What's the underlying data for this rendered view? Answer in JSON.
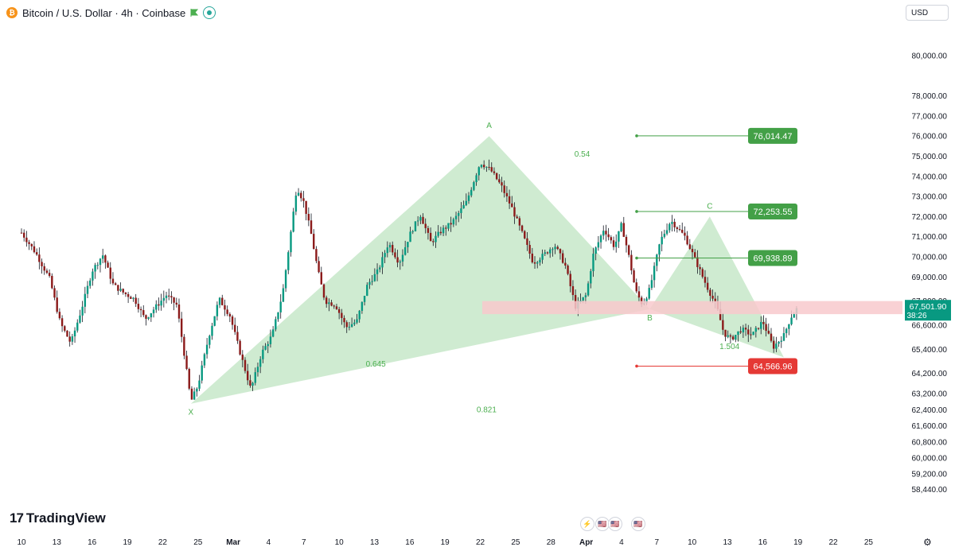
{
  "header": {
    "coin_icon": "bitcoin-icon",
    "symbol_title": "Bitcoin / U.S. Dollar · 4h · Coinbase",
    "flag_icon": "green-flag-icon",
    "status_icon": "market-open-dot-icon"
  },
  "currency": "USD",
  "logo": {
    "mark": "17",
    "text": "TradingView"
  },
  "settings_icon": "gear-icon",
  "colors": {
    "up": "#089981",
    "down": "#8b1a1a",
    "pattern_fill": "#c7e8c9",
    "pattern_text": "#4caf50",
    "target_green": "#43a047",
    "stop_red": "#e53935",
    "zone_pink": "#f8c9cc"
  },
  "chart_data": {
    "type": "candlestick",
    "price_axis": [
      "80,000.00",
      "78,000.00",
      "77,000.00",
      "76,000.00",
      "75,000.00",
      "74,000.00",
      "73,000.00",
      "72,000.00",
      "71,000.00",
      "70,000.00",
      "69,000.00",
      "67,800.00",
      "66,600.00",
      "65,400.00",
      "64,200.00",
      "63,200.00",
      "62,400.00",
      "61,600.00",
      "60,800.00",
      "60,000.00",
      "59,200.00",
      "58,440.00"
    ],
    "time_axis": [
      "10",
      "13",
      "16",
      "19",
      "22",
      "25",
      "Mar",
      "4",
      "7",
      "10",
      "13",
      "16",
      "19",
      "22",
      "25",
      "28",
      "Apr",
      "4",
      "7",
      "10",
      "13",
      "16",
      "19",
      "22",
      "25"
    ],
    "current_price": "67,501.90",
    "countdown": "38:26",
    "pattern": {
      "points": [
        {
          "label": "X",
          "time_index": 4.8,
          "price": 62700
        },
        {
          "label": "A",
          "time_index": 13.25,
          "price": 76000
        },
        {
          "label": "B",
          "time_index": 17.8,
          "price": 67400
        },
        {
          "label": "C",
          "time_index": 19.5,
          "price": 72000
        },
        {
          "label": "D",
          "time_index": 21.6,
          "price": 65000
        }
      ],
      "ratios": [
        {
          "value": "0.54"
        },
        {
          "value": "0.645"
        },
        {
          "value": "0.821"
        },
        {
          "value": "1.504"
        }
      ]
    },
    "targets": [
      {
        "price": 76014.47,
        "label": "76,014.47",
        "kind": "target"
      },
      {
        "price": 72253.55,
        "label": "72,253.55",
        "kind": "target"
      },
      {
        "price": 69938.89,
        "label": "69,938.89",
        "kind": "target"
      },
      {
        "price": 64566.96,
        "label": "64,566.96",
        "kind": "stop"
      }
    ],
    "zone": {
      "price_low": 67150,
      "price_high": 67800
    },
    "price_path": [
      [
        0,
        71200
      ],
      [
        0.4,
        70200
      ],
      [
        0.8,
        68900
      ],
      [
        1.1,
        66700
      ],
      [
        1.4,
        65700
      ],
      [
        1.7,
        67400
      ],
      [
        2.0,
        69300
      ],
      [
        2.3,
        70100
      ],
      [
        2.6,
        68600
      ],
      [
        2.9,
        68200
      ],
      [
        3.2,
        67900
      ],
      [
        3.5,
        66900
      ],
      [
        3.8,
        67500
      ],
      [
        4.1,
        68100
      ],
      [
        4.4,
        67600
      ],
      [
        4.6,
        65300
      ],
      [
        4.8,
        62800
      ],
      [
        5.0,
        63600
      ],
      [
        5.3,
        66000
      ],
      [
        5.6,
        67900
      ],
      [
        5.9,
        67100
      ],
      [
        6.2,
        65200
      ],
      [
        6.5,
        63400
      ],
      [
        6.8,
        65200
      ],
      [
        7.1,
        66100
      ],
      [
        7.4,
        68200
      ],
      [
        7.6,
        70800
      ],
      [
        7.8,
        73500
      ],
      [
        8.0,
        72700
      ],
      [
        8.2,
        71200
      ],
      [
        8.4,
        69300
      ],
      [
        8.6,
        67800
      ],
      [
        8.9,
        67600
      ],
      [
        9.2,
        66500
      ],
      [
        9.5,
        66800
      ],
      [
        9.8,
        68600
      ],
      [
        10.1,
        69300
      ],
      [
        10.4,
        70700
      ],
      [
        10.7,
        69700
      ],
      [
        11.0,
        71100
      ],
      [
        11.3,
        72100
      ],
      [
        11.6,
        70700
      ],
      [
        11.9,
        71300
      ],
      [
        12.2,
        71700
      ],
      [
        12.6,
        72700
      ],
      [
        13.0,
        74700
      ],
      [
        13.3,
        74300
      ],
      [
        13.6,
        73500
      ],
      [
        13.9,
        72400
      ],
      [
        14.2,
        71100
      ],
      [
        14.5,
        69700
      ],
      [
        14.8,
        70100
      ],
      [
        15.1,
        70600
      ],
      [
        15.4,
        69600
      ],
      [
        15.7,
        67500
      ],
      [
        16.0,
        68100
      ],
      [
        16.2,
        70100
      ],
      [
        16.5,
        71400
      ],
      [
        16.8,
        70500
      ],
      [
        17.0,
        71600
      ],
      [
        17.2,
        70100
      ],
      [
        17.4,
        68300
      ],
      [
        17.6,
        67600
      ],
      [
        17.8,
        68400
      ],
      [
        18.1,
        70800
      ],
      [
        18.4,
        71800
      ],
      [
        18.8,
        71000
      ],
      [
        19.1,
        69800
      ],
      [
        19.4,
        68600
      ],
      [
        19.7,
        67500
      ],
      [
        19.9,
        66200
      ],
      [
        20.1,
        65900
      ],
      [
        20.4,
        66400
      ],
      [
        20.7,
        66100
      ],
      [
        21.0,
        66800
      ],
      [
        21.3,
        65500
      ],
      [
        21.6,
        66100
      ],
      [
        21.8,
        67000
      ],
      [
        22.0,
        67500
      ]
    ]
  }
}
